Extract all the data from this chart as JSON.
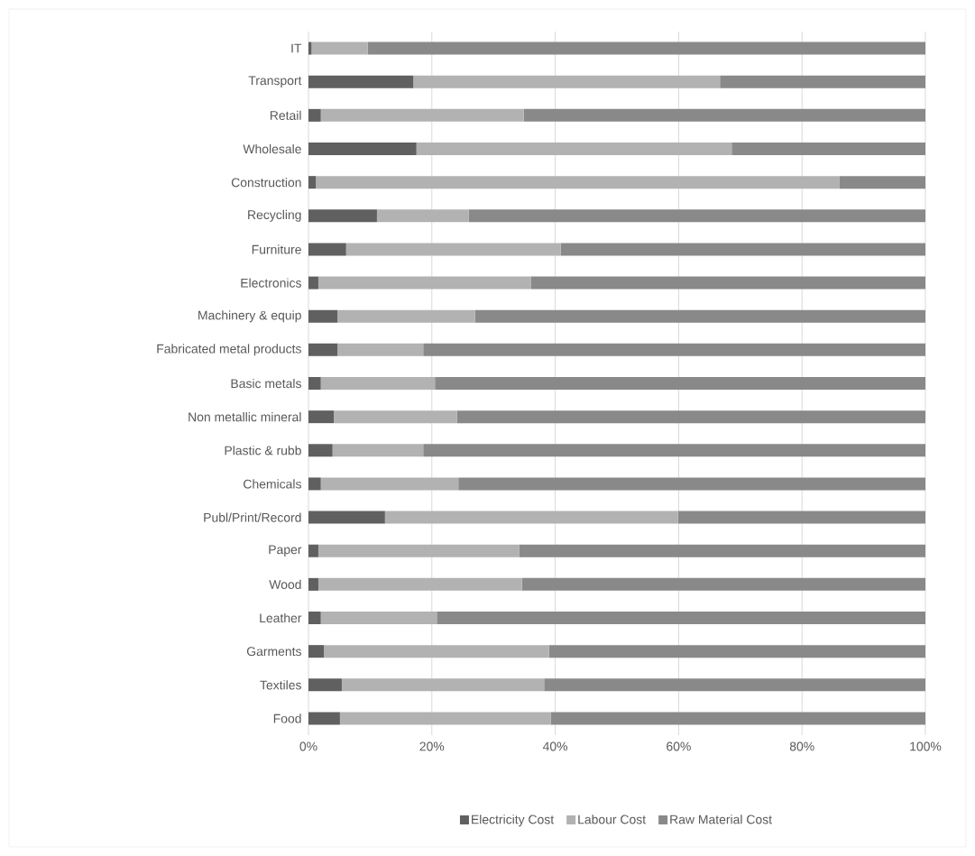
{
  "chart_data": {
    "type": "bar",
    "orientation": "horizontal",
    "stacked": true,
    "grid": "x",
    "legend": "bottom",
    "categories": [
      "IT",
      "Transport",
      "Retail",
      "Wholesale",
      "Construction",
      "Recycling",
      "Furniture",
      "Electronics",
      "Machinery & equip",
      "Fabricated metal products",
      "Basic metals",
      "Non metallic mineral",
      "Plastic & rubb",
      "Chemicals",
      "Publ/Print/Record",
      "Paper",
      "Wood",
      "Leather",
      "Garments",
      "Textiles",
      "Food"
    ],
    "series": [
      {
        "name": "Electricity Cost",
        "color": "#606060",
        "values": [
          0.5,
          17.0,
          2.0,
          17.5,
          1.2,
          11.1,
          6.1,
          1.6,
          4.7,
          4.7,
          2.0,
          4.1,
          3.9,
          2.0,
          12.4,
          1.6,
          1.6,
          2.0,
          2.5,
          5.4,
          5.1
        ]
      },
      {
        "name": "Labour Cost",
        "color": "#b2b2b2",
        "values": [
          9.1,
          49.7,
          32.9,
          51.1,
          84.9,
          14.9,
          34.8,
          34.5,
          22.3,
          13.9,
          18.5,
          20.0,
          14.7,
          22.3,
          47.5,
          32.6,
          33.0,
          18.8,
          36.5,
          32.8,
          34.2
        ]
      },
      {
        "name": "Raw Material Cost",
        "color": "#898989",
        "values": [
          90.4,
          33.3,
          65.1,
          31.4,
          13.9,
          74.0,
          59.1,
          63.9,
          73.0,
          81.4,
          79.5,
          75.9,
          81.4,
          75.7,
          40.1,
          65.8,
          65.4,
          79.2,
          61.0,
          61.8,
          60.7
        ]
      }
    ],
    "xlim": [
      0,
      100
    ],
    "xticks": [
      {
        "value": 0,
        "label": "0%"
      },
      {
        "value": 20,
        "label": "20%"
      },
      {
        "value": 40,
        "label": "40%"
      },
      {
        "value": 60,
        "label": "60%"
      },
      {
        "value": 80,
        "label": "80%"
      },
      {
        "value": 100,
        "label": "100%"
      }
    ]
  }
}
